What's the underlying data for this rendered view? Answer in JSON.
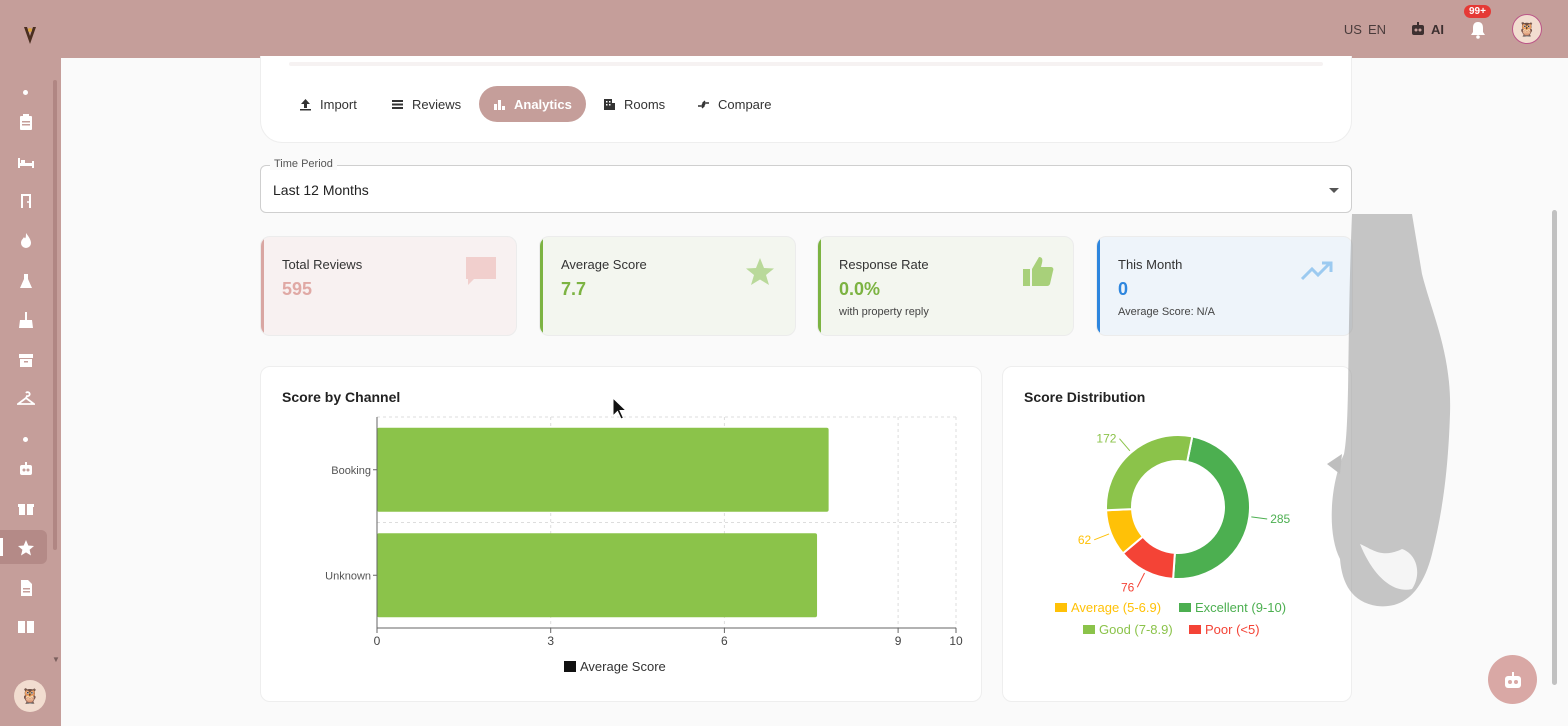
{
  "header": {
    "lang_flag": "US",
    "lang_code": "EN",
    "ai_label": "AI",
    "notification_count": "99+"
  },
  "tabs": [
    {
      "label": "Import",
      "icon": "upload-icon"
    },
    {
      "label": "Reviews",
      "icon": "list-icon"
    },
    {
      "label": "Analytics",
      "icon": "bar-chart-icon",
      "active": true
    },
    {
      "label": "Rooms",
      "icon": "building-icon"
    },
    {
      "label": "Compare",
      "icon": "compare-icon"
    }
  ],
  "period": {
    "label": "Time Period",
    "value": "Last 12 Months"
  },
  "kpis": [
    {
      "title": "Total Reviews",
      "value": "595",
      "sub": "",
      "color": "#e0a9a5",
      "accent": "#d9a6a2",
      "icon": "chat-icon"
    },
    {
      "title": "Average Score",
      "value": "7.7",
      "sub": "",
      "color": "#7cb342",
      "accent": "#7cb342",
      "icon": "star-icon"
    },
    {
      "title": "Response Rate",
      "value": "0.0%",
      "sub": "with property reply",
      "color": "#7cb342",
      "accent": "#7cb342",
      "icon": "thumbs-up-icon"
    },
    {
      "title": "This Month",
      "value": "0",
      "sub": "Average Score: N/A",
      "color": "#2e86de",
      "accent": "#2e86de",
      "icon": "trending-up-icon"
    }
  ],
  "channel_chart": {
    "title": "Score by Channel",
    "legend": "Average Score"
  },
  "distribution_chart": {
    "title": "Score Distribution"
  },
  "chart_data": [
    {
      "type": "bar",
      "orientation": "horizontal",
      "title": "Score by Channel",
      "categories": [
        "Booking",
        "Unknown"
      ],
      "series": [
        {
          "name": "Average Score",
          "values": [
            7.8,
            7.6
          ]
        }
      ],
      "xlim": [
        0,
        10
      ],
      "xticks": [
        0,
        3,
        6,
        9,
        10
      ],
      "grid": true,
      "legend": "bottom",
      "bar_color": "#8bc34a"
    },
    {
      "type": "pie",
      "title": "Score Distribution",
      "donut": true,
      "slices": [
        {
          "label": "Excellent (9-10)",
          "value": 285,
          "color": "#4caf50"
        },
        {
          "label": "Poor (<5)",
          "value": 76,
          "color": "#f44336"
        },
        {
          "label": "Average (5-6.9)",
          "value": 62,
          "color": "#ffc107"
        },
        {
          "label": "Good (7-8.9)",
          "value": 172,
          "color": "#8bc34a"
        }
      ],
      "legend": "bottom"
    }
  ]
}
